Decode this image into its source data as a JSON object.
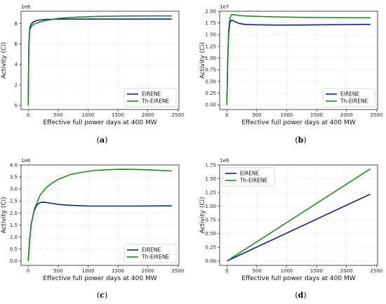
{
  "chart_data": [
    {
      "type": "line",
      "panel_label": "(a)",
      "xlabel": "Effective full power days at 400 MW",
      "ylabel": "Activity (Ci)",
      "y_offset_label": "1e6",
      "y_scale": 1000000,
      "xlim": [
        -120,
        2520
      ],
      "ylim": [
        -0.4,
        9.2
      ],
      "x_ticks": [
        0,
        500,
        1000,
        1500,
        2000,
        2500
      ],
      "x_tick_labels": [
        "0",
        "500",
        "1000",
        "1500",
        "2000",
        "2500"
      ],
      "y_ticks": [
        0,
        2,
        4,
        6,
        8
      ],
      "y_tick_labels": [
        "0",
        "2",
        "4",
        "6",
        "8"
      ],
      "grid": true,
      "legend_position": "lower right",
      "series": [
        {
          "name": "EIRENE",
          "color": "#0d1f8c",
          "x": [
            0,
            10,
            25,
            50,
            75,
            100,
            150,
            200,
            300,
            500,
            800,
            1200,
            1600,
            2000,
            2400
          ],
          "y": [
            0,
            5.8,
            7.55,
            7.95,
            8.1,
            8.2,
            8.3,
            8.35,
            8.4,
            8.42,
            8.43,
            8.43,
            8.43,
            8.43,
            8.43
          ]
        },
        {
          "name": "Th-EIRENE",
          "color": "#1e8a1e",
          "x": [
            0,
            10,
            25,
            50,
            75,
            100,
            150,
            200,
            300,
            500,
            800,
            1200,
            1600,
            2000,
            2400
          ],
          "y": [
            0,
            5.6,
            7.35,
            7.7,
            7.85,
            7.95,
            8.05,
            8.15,
            8.3,
            8.5,
            8.62,
            8.7,
            8.73,
            8.74,
            8.74
          ]
        }
      ]
    },
    {
      "type": "line",
      "panel_label": "(b)",
      "xlabel": "Effective full power days at 400 MW",
      "ylabel": "Activity (Ci)",
      "y_offset_label": "1e7",
      "y_scale": 10000000,
      "xlim": [
        -120,
        2520
      ],
      "ylim": [
        -0.1,
        2.0
      ],
      "x_ticks": [
        0,
        500,
        1000,
        1500,
        2000,
        2500
      ],
      "x_tick_labels": [
        "0",
        "500",
        "1000",
        "1500",
        "2000",
        "2500"
      ],
      "y_ticks": [
        0,
        0.25,
        0.5,
        0.75,
        1.0,
        1.25,
        1.5,
        1.75,
        2.0
      ],
      "y_tick_labels": [
        "0.00",
        "0.25",
        "0.50",
        "0.75",
        "1.00",
        "1.25",
        "1.50",
        "1.75",
        "2.00"
      ],
      "grid": true,
      "legend_position": "lower right",
      "series": [
        {
          "name": "EIRENE",
          "color": "#0d1f8c",
          "x": [
            0,
            15,
            30,
            50,
            75,
            100,
            150,
            200,
            300,
            500,
            800,
            1200,
            1600,
            2000,
            2400
          ],
          "y": [
            0,
            0.9,
            1.5,
            1.75,
            1.81,
            1.8,
            1.77,
            1.74,
            1.72,
            1.71,
            1.705,
            1.705,
            1.71,
            1.715,
            1.72
          ]
        },
        {
          "name": "Th-EIRENE",
          "color": "#1e8a1e",
          "x": [
            0,
            15,
            30,
            50,
            75,
            100,
            150,
            200,
            300,
            500,
            800,
            1200,
            1600,
            2000,
            2400
          ],
          "y": [
            0,
            0.95,
            1.6,
            1.85,
            1.92,
            1.93,
            1.92,
            1.91,
            1.9,
            1.89,
            1.88,
            1.87,
            1.865,
            1.86,
            1.86
          ]
        }
      ]
    },
    {
      "type": "line",
      "panel_label": "(c)",
      "xlabel": "Effective full power days at 400 MW",
      "ylabel": "Activity (Ci)",
      "y_offset_label": "1e6",
      "y_scale": 1000000,
      "xlim": [
        -120,
        2520
      ],
      "ylim": [
        -0.18,
        4.0
      ],
      "x_ticks": [
        0,
        500,
        1000,
        1500,
        2000,
        2500
      ],
      "x_tick_labels": [
        "0",
        "500",
        "1000",
        "1500",
        "2000",
        "2500"
      ],
      "y_ticks": [
        0,
        0.5,
        1.0,
        1.5,
        2.0,
        2.5,
        3.0,
        3.5,
        4.0
      ],
      "y_tick_labels": [
        "0.0",
        "0.5",
        "1.0",
        "1.5",
        "2.0",
        "2.5",
        "3.0",
        "3.5",
        "4.0"
      ],
      "grid": true,
      "legend_position": "lower right",
      "series": [
        {
          "name": "EIRENE",
          "color": "#0d1f8c",
          "x": [
            0,
            25,
            50,
            100,
            150,
            200,
            250,
            300,
            400,
            500,
            700,
            1000,
            1400,
            1800,
            2400
          ],
          "y": [
            0,
            0.9,
            1.55,
            2.1,
            2.35,
            2.44,
            2.45,
            2.44,
            2.4,
            2.36,
            2.32,
            2.29,
            2.29,
            2.29,
            2.3
          ]
        },
        {
          "name": "Th-EIRENE",
          "color": "#1e8a1e",
          "x": [
            0,
            25,
            50,
            100,
            200,
            300,
            400,
            500,
            700,
            900,
            1100,
            1300,
            1500,
            1700,
            2000,
            2400
          ],
          "y": [
            0,
            0.9,
            1.5,
            2.15,
            2.75,
            3.05,
            3.25,
            3.4,
            3.6,
            3.7,
            3.77,
            3.8,
            3.82,
            3.82,
            3.8,
            3.75
          ]
        }
      ]
    },
    {
      "type": "line",
      "panel_label": "(d)",
      "xlabel": "Effective full power days at 400 MW",
      "ylabel": "Activity (Ci)",
      "y_offset_label": "1e6",
      "y_scale": 1000000,
      "xlim": [
        -120,
        2520
      ],
      "ylim": [
        -0.08,
        1.75
      ],
      "x_ticks": [
        0,
        500,
        1000,
        1500,
        2000,
        2500
      ],
      "x_tick_labels": [
        "0",
        "500",
        "1000",
        "1500",
        "2000",
        "2500"
      ],
      "y_ticks": [
        0,
        0.25,
        0.5,
        0.75,
        1.0,
        1.25,
        1.5,
        1.75
      ],
      "y_tick_labels": [
        "0.00",
        "0.25",
        "0.50",
        "0.75",
        "1.00",
        "1.25",
        "1.50",
        "1.75"
      ],
      "grid": true,
      "legend_position": "upper left",
      "series": [
        {
          "name": "EIRENE",
          "color": "#0d1f8c",
          "x": [
            0,
            2400
          ],
          "y": [
            0,
            1.22
          ]
        },
        {
          "name": "Th-EIRENE",
          "color": "#1e8a1e",
          "x": [
            0,
            2400
          ],
          "y": [
            0,
            1.68
          ]
        }
      ]
    }
  ]
}
